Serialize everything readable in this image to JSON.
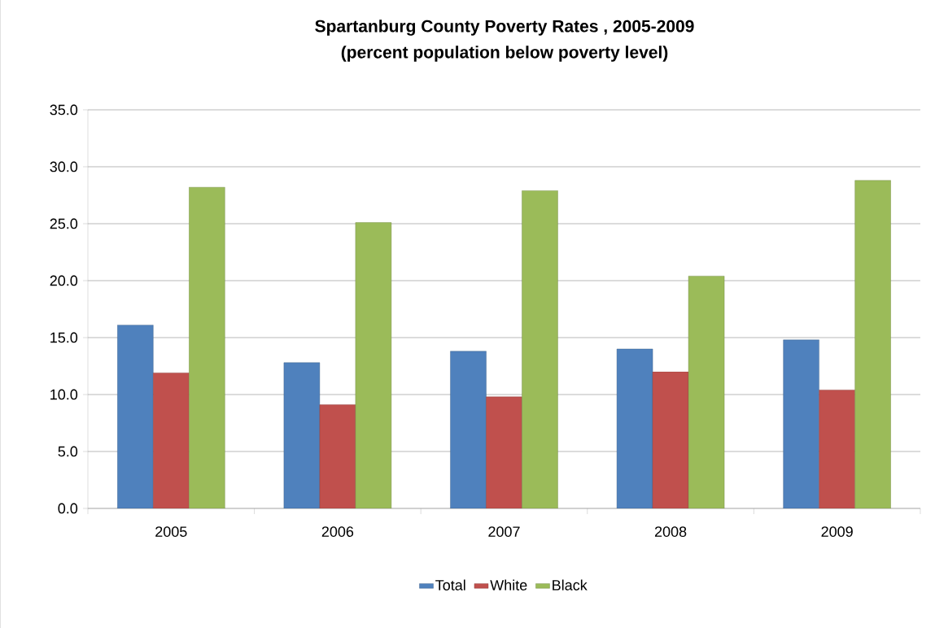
{
  "chart_data": {
    "type": "bar",
    "title": "Spartanburg County Poverty Rates , 2005-2009",
    "subtitle": "(percent population below poverty level)",
    "categories": [
      "2005",
      "2006",
      "2007",
      "2008",
      "2009"
    ],
    "series": [
      {
        "name": "Total",
        "color": "#4f81bd",
        "values": [
          16.1,
          12.8,
          13.8,
          14.0,
          14.8
        ]
      },
      {
        "name": "White",
        "color": "#c0504d",
        "values": [
          11.9,
          9.1,
          9.8,
          12.0,
          10.4
        ]
      },
      {
        "name": "Black",
        "color": "#9bbb59",
        "values": [
          28.2,
          25.1,
          27.9,
          20.4,
          28.8
        ]
      }
    ],
    "ylim": [
      0,
      35
    ],
    "yticks": [
      {
        "value": 0,
        "label": "0.0"
      },
      {
        "value": 5,
        "label": "5.0"
      },
      {
        "value": 10,
        "label": "10.0"
      },
      {
        "value": 15,
        "label": "15.0"
      },
      {
        "value": 20,
        "label": "20.0"
      },
      {
        "value": 25,
        "label": "25.0"
      },
      {
        "value": 30,
        "label": "30.0"
      },
      {
        "value": 35,
        "label": "35.0"
      }
    ],
    "grid": "y",
    "legend": "bottom"
  }
}
